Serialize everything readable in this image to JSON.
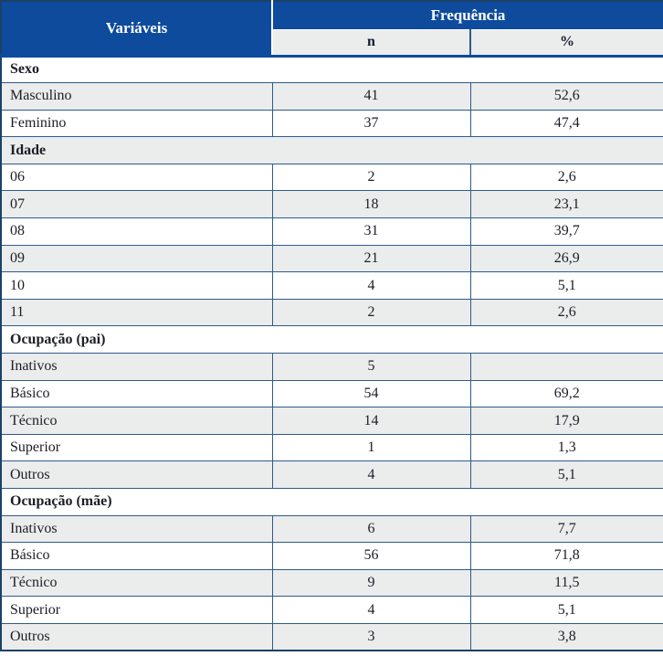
{
  "colors": {
    "header_blue": "#0E4B9D",
    "band_gray": "#EBECEC",
    "outer_border": "#1B4168",
    "inner_border": "#2E5B8C",
    "header_text": "#FFFFFF",
    "subheader_text": "#131B2E",
    "body_text": "#1C1E26"
  },
  "table": {
    "header": {
      "variables": "Variáveis",
      "frequency": "Frequência",
      "sub_n": "n",
      "sub_pct": "%"
    },
    "rows": [
      {
        "type": "section",
        "title": "Sexo"
      },
      {
        "type": "data",
        "label": "Masculino",
        "n": "41",
        "pct": "52,6"
      },
      {
        "type": "data",
        "label": "Feminino",
        "n": "37",
        "pct": "47,4"
      },
      {
        "type": "section",
        "title": "Idade"
      },
      {
        "type": "data",
        "label": "06",
        "n": "2",
        "pct": "2,6"
      },
      {
        "type": "data",
        "label": "07",
        "n": "18",
        "pct": "23,1"
      },
      {
        "type": "data",
        "label": "08",
        "n": "31",
        "pct": "39,7"
      },
      {
        "type": "data",
        "label": "09",
        "n": "21",
        "pct": "26,9"
      },
      {
        "type": "data",
        "label": "10",
        "n": "4",
        "pct": "5,1"
      },
      {
        "type": "data",
        "label": "11",
        "n": "2",
        "pct": "2,6"
      },
      {
        "type": "section",
        "title": "Ocupação (pai)"
      },
      {
        "type": "data",
        "label": "Inativos",
        "n": "5",
        "pct": ""
      },
      {
        "type": "data",
        "label": "Básico",
        "n": "54",
        "pct": "69,2"
      },
      {
        "type": "data",
        "label": "Técnico",
        "n": "14",
        "pct": "17,9"
      },
      {
        "type": "data",
        "label": "Superior",
        "n": "1",
        "pct": "1,3"
      },
      {
        "type": "data",
        "label": "Outros",
        "n": "4",
        "pct": "5,1"
      },
      {
        "type": "section",
        "title": "Ocupação (mãe)"
      },
      {
        "type": "data",
        "label": "Inativos",
        "n": "6",
        "pct": "7,7"
      },
      {
        "type": "data",
        "label": "Básico",
        "n": "56",
        "pct": "71,8"
      },
      {
        "type": "data",
        "label": "Técnico",
        "n": "9",
        "pct": "11,5"
      },
      {
        "type": "data",
        "label": "Superior",
        "n": "4",
        "pct": "5,1"
      },
      {
        "type": "data",
        "label": "Outros",
        "n": "3",
        "pct": "3,8"
      }
    ]
  },
  "chart_data": {
    "type": "table",
    "title": "",
    "columns": [
      "Variáveis",
      "Frequência n",
      "Frequência %"
    ],
    "decimal_separator": ",",
    "sections": [
      {
        "name": "Sexo",
        "rows": [
          {
            "label": "Masculino",
            "n": 41,
            "pct": 52.6
          },
          {
            "label": "Feminino",
            "n": 37,
            "pct": 47.4
          }
        ]
      },
      {
        "name": "Idade",
        "rows": [
          {
            "label": "06",
            "n": 2,
            "pct": 2.6
          },
          {
            "label": "07",
            "n": 18,
            "pct": 23.1
          },
          {
            "label": "08",
            "n": 31,
            "pct": 39.7
          },
          {
            "label": "09",
            "n": 21,
            "pct": 26.9
          },
          {
            "label": "10",
            "n": 4,
            "pct": 5.1
          },
          {
            "label": "11",
            "n": 2,
            "pct": 2.6
          }
        ]
      },
      {
        "name": "Ocupação (pai)",
        "rows": [
          {
            "label": "Inativos",
            "n": 5,
            "pct": null
          },
          {
            "label": "Básico",
            "n": 54,
            "pct": 69.2
          },
          {
            "label": "Técnico",
            "n": 14,
            "pct": 17.9
          },
          {
            "label": "Superior",
            "n": 1,
            "pct": 1.3
          },
          {
            "label": "Outros",
            "n": 4,
            "pct": 5.1
          }
        ]
      },
      {
        "name": "Ocupação (mãe)",
        "rows": [
          {
            "label": "Inativos",
            "n": 6,
            "pct": 7.7
          },
          {
            "label": "Básico",
            "n": 56,
            "pct": 71.8
          },
          {
            "label": "Técnico",
            "n": 9,
            "pct": 11.5
          },
          {
            "label": "Superior",
            "n": 4,
            "pct": 5.1
          },
          {
            "label": "Outros",
            "n": 3,
            "pct": 3.8
          }
        ]
      }
    ]
  }
}
